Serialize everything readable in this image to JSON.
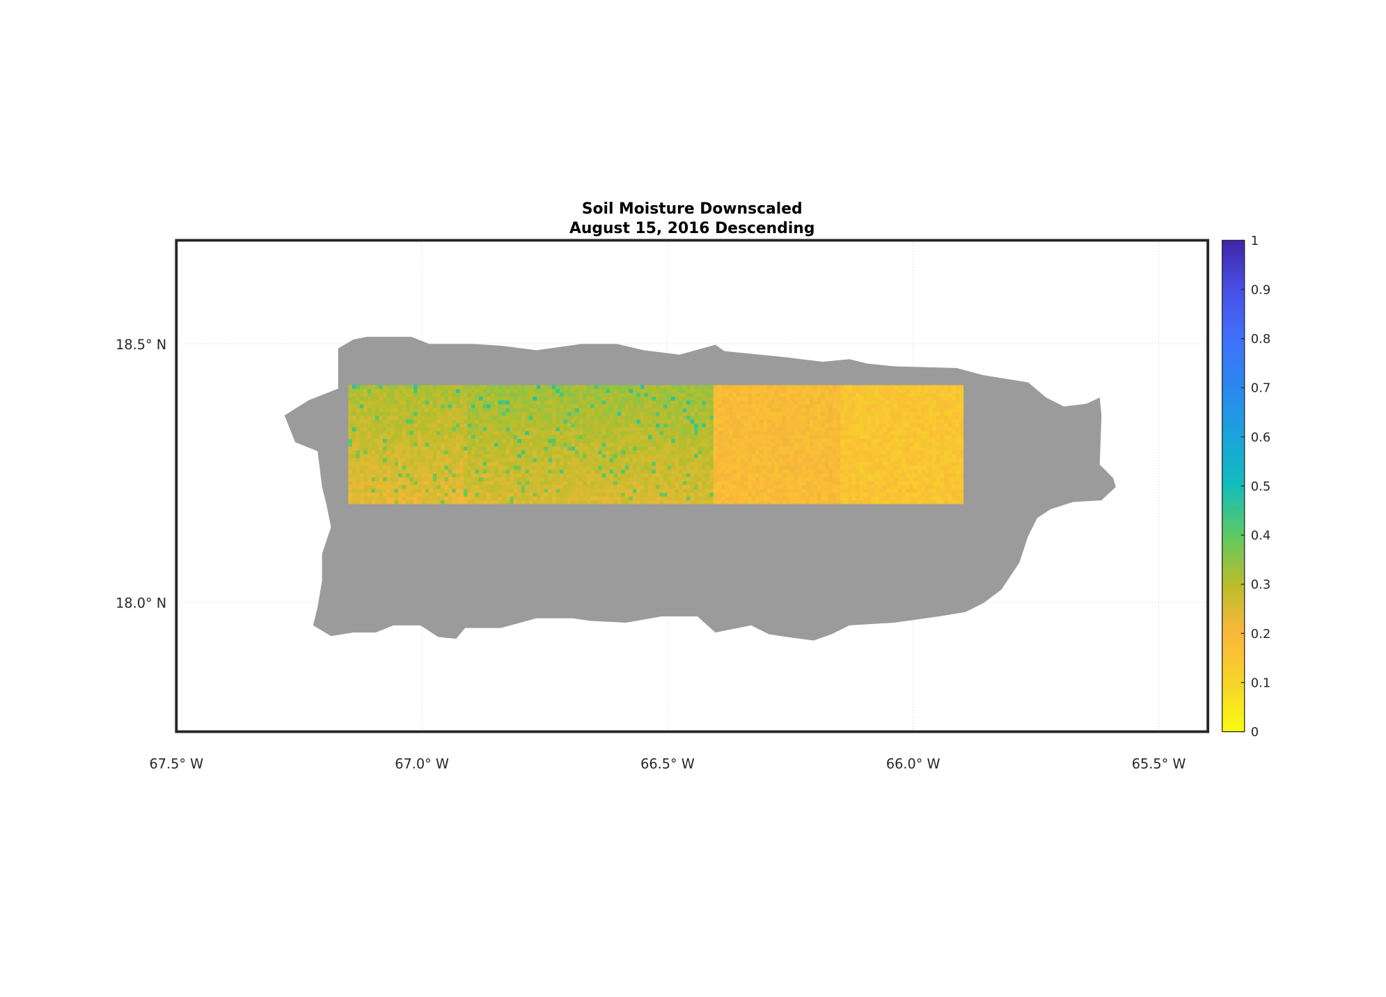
{
  "chart_data": {
    "type": "heatmap",
    "title": "Soil Moisture Downscaled",
    "subtitle": "August 15, 2016 Descending",
    "xlabel": "",
    "ylabel": "",
    "xlim": [
      -67.5,
      -65.4
    ],
    "ylim": [
      17.75,
      18.7
    ],
    "x_ticks": [
      -67.5,
      -67.0,
      -66.5,
      -66.0,
      -65.5
    ],
    "x_tick_labels": [
      "67.5° W",
      "67.0° W",
      "66.5° W",
      "66.0° W",
      "65.5° W"
    ],
    "y_ticks": [
      18.0,
      18.5
    ],
    "y_tick_labels": [
      "18.0° N",
      "18.5° N"
    ],
    "grid": true,
    "land_mask_color": "#9b9b9b",
    "data_extent": {
      "lon": [
        -67.15,
        -65.9
      ],
      "lat": [
        18.19,
        18.42
      ]
    },
    "tiles": [
      {
        "lon": [
          -67.15,
          -66.91
        ],
        "mean_value": 0.27
      },
      {
        "lon": [
          -66.91,
          -66.41
        ],
        "mean_value": 0.29
      },
      {
        "lon": [
          -66.41,
          -66.15
        ],
        "mean_value": 0.19
      },
      {
        "lon": [
          -66.15,
          -65.9
        ],
        "mean_value": 0.15
      }
    ],
    "colorbar": {
      "range": [
        0,
        1
      ],
      "ticks": [
        0,
        0.1,
        0.2,
        0.3,
        0.4,
        0.5,
        0.6,
        0.7,
        0.8,
        0.9,
        1
      ],
      "tick_labels": [
        "0",
        "0.1",
        "0.2",
        "0.3",
        "0.4",
        "0.5",
        "0.6",
        "0.7",
        "0.8",
        "0.9",
        "1"
      ],
      "colormap": [
        "#f9fb0e",
        "#f6d42a",
        "#fbb73a",
        "#b9bd2c",
        "#5ec962",
        "#13bdbb",
        "#1aa4db",
        "#2b88ef",
        "#4070fb",
        "#4850e6",
        "#3e26a8"
      ],
      "placement": "right"
    }
  }
}
